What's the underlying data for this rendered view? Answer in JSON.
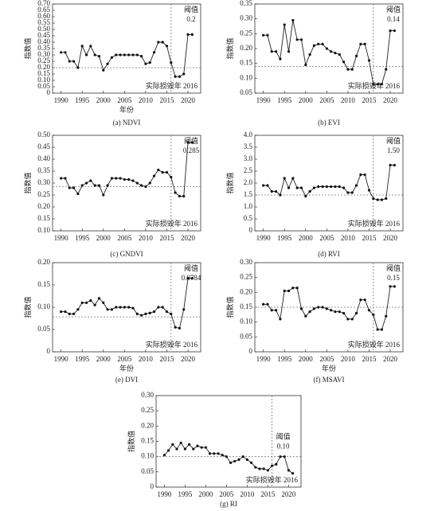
{
  "chart_data": [
    {
      "type": "line",
      "caption": "(a) NDVI",
      "ylabel": "指数值",
      "xlabel": "年份",
      "threshold_title": "阈值",
      "threshold": 0.2,
      "annotation": "实际损毁年 2016",
      "event_x": 2016,
      "x": [
        1990,
        1991,
        1992,
        1993,
        1994,
        1995,
        1996,
        1997,
        1998,
        1999,
        2000,
        2001,
        2002,
        2003,
        2004,
        2005,
        2006,
        2007,
        2008,
        2009,
        2010,
        2011,
        2012,
        2013,
        2014,
        2015,
        2016,
        2017,
        2018,
        2019,
        2020,
        2021
      ],
      "values": [
        0.32,
        0.32,
        0.25,
        0.25,
        0.2,
        0.37,
        0.3,
        0.37,
        0.3,
        0.29,
        0.18,
        0.23,
        0.28,
        0.3,
        0.3,
        0.3,
        0.3,
        0.3,
        0.3,
        0.29,
        0.23,
        0.24,
        0.32,
        0.4,
        0.4,
        0.37,
        0.24,
        0.13,
        0.13,
        0.15,
        0.46,
        0.46
      ],
      "xlim": [
        1988,
        2023
      ],
      "xticks": [
        1990,
        1995,
        2000,
        2005,
        2010,
        2015,
        2020
      ],
      "ylim": [
        0,
        0.7
      ],
      "yticks": [
        0,
        0.05,
        {
          "value": 0.1,
          "label": "0.10"
        },
        0.15,
        {
          "value": 0.2,
          "label": "0.20"
        },
        0.25,
        {
          "value": 0.3,
          "label": "0.30"
        },
        0.35,
        {
          "value": 0.4,
          "label": "0.40"
        },
        0.45,
        {
          "value": 0.5,
          "label": "0.50"
        },
        0.55,
        {
          "value": 0.6,
          "label": "0.60"
        },
        0.65,
        {
          "value": 0.7,
          "label": "0.70"
        }
      ]
    },
    {
      "type": "line",
      "caption": "(b) EVI",
      "ylabel": "指数值",
      "threshold_title": "阈值",
      "threshold": 0.14,
      "annotation": "实际损毁年 2016",
      "event_x": 2016,
      "x": [
        1990,
        1991,
        1992,
        1993,
        1994,
        1995,
        1996,
        1997,
        1998,
        1999,
        2000,
        2001,
        2002,
        2003,
        2004,
        2005,
        2006,
        2007,
        2008,
        2009,
        2010,
        2011,
        2012,
        2013,
        2014,
        2015,
        2016,
        2017,
        2018,
        2019,
        2020,
        2021
      ],
      "values": [
        0.245,
        0.245,
        0.19,
        0.19,
        0.165,
        0.28,
        0.19,
        0.295,
        0.23,
        0.23,
        0.145,
        0.18,
        0.21,
        0.215,
        0.215,
        0.2,
        0.19,
        0.185,
        0.18,
        0.155,
        0.13,
        0.13,
        0.175,
        0.215,
        0.215,
        0.16,
        0.08,
        0.08,
        0.08,
        0.13,
        0.26,
        0.26
      ],
      "xlim": [
        1988,
        2023
      ],
      "xticks": [
        1990,
        1995,
        2000,
        2005,
        2010,
        2015,
        2020
      ],
      "ylim": [
        0.05,
        0.35
      ],
      "yticks": [
        0.05,
        {
          "value": 0.1,
          "label": "0.10"
        },
        0.15,
        {
          "value": 0.2,
          "label": "0.20"
        },
        0.25,
        {
          "value": 0.3,
          "label": "0.30"
        },
        0.35
      ]
    },
    {
      "type": "line",
      "caption": "(c) GNDVI",
      "ylabel": "指数值",
      "threshold_title": "阈值",
      "threshold": 0.285,
      "annotation": "实际损毁年 2016",
      "event_x": 2016,
      "x": [
        1990,
        1991,
        1992,
        1993,
        1994,
        1995,
        1996,
        1997,
        1998,
        1999,
        2000,
        2001,
        2002,
        2003,
        2004,
        2005,
        2006,
        2007,
        2008,
        2009,
        2010,
        2011,
        2012,
        2013,
        2014,
        2015,
        2016,
        2017,
        2018,
        2019,
        2020,
        2021
      ],
      "values": [
        0.32,
        0.32,
        0.28,
        0.28,
        0.255,
        0.29,
        0.3,
        0.31,
        0.29,
        0.29,
        0.25,
        0.29,
        0.32,
        0.32,
        0.32,
        0.315,
        0.315,
        0.31,
        0.3,
        0.29,
        0.285,
        0.3,
        0.33,
        0.355,
        0.345,
        0.345,
        0.325,
        0.26,
        0.245,
        0.245,
        0.47,
        0.47
      ],
      "xlim": [
        1988,
        2023
      ],
      "xticks": [
        1990,
        1995,
        2000,
        2005,
        2010,
        2015,
        2020
      ],
      "ylim": [
        0.1,
        0.5
      ],
      "yticks": [
        {
          "value": 0.1,
          "label": "0.10"
        },
        0.15,
        {
          "value": 0.2,
          "label": "0.20"
        },
        0.25,
        {
          "value": 0.3,
          "label": "0.30"
        },
        0.35,
        {
          "value": 0.4,
          "label": "0.40"
        },
        0.45,
        {
          "value": 0.5,
          "label": "0.50"
        }
      ]
    },
    {
      "type": "line",
      "caption": "(d) RVI",
      "ylabel": "指数值",
      "threshold_title": "阈值",
      "threshold": {
        "value": 1.5,
        "label": "1.50"
      },
      "annotation": "实际损毁年 2016",
      "event_x": 2016,
      "x": [
        1990,
        1991,
        1992,
        1993,
        1994,
        1995,
        1996,
        1997,
        1998,
        1999,
        2000,
        2001,
        2002,
        2003,
        2004,
        2005,
        2006,
        2007,
        2008,
        2009,
        2010,
        2011,
        2012,
        2013,
        2014,
        2015,
        2016,
        2017,
        2018,
        2019,
        2020,
        2021
      ],
      "values": [
        1.9,
        1.9,
        1.65,
        1.65,
        1.5,
        2.2,
        1.8,
        2.2,
        1.8,
        1.8,
        1.45,
        1.65,
        1.8,
        1.85,
        1.85,
        1.85,
        1.85,
        1.85,
        1.85,
        1.8,
        1.6,
        1.6,
        1.9,
        2.35,
        2.35,
        1.7,
        1.35,
        1.3,
        1.3,
        1.35,
        2.75,
        2.75
      ],
      "xlim": [
        1988,
        2023
      ],
      "xticks": [
        1990,
        1995,
        2000,
        2005,
        2010,
        2015,
        2020
      ],
      "ylim": [
        0,
        4
      ],
      "yticks": [
        0,
        0.5,
        {
          "value": 1,
          "label": "1.0"
        },
        1.5,
        {
          "value": 2,
          "label": "2.0"
        },
        2.5,
        {
          "value": 3,
          "label": "3.0"
        },
        3.5,
        {
          "value": 4,
          "label": "4.0"
        }
      ]
    },
    {
      "type": "line",
      "caption": "(e) DVI",
      "ylabel": "指数值",
      "xlabel": "年份",
      "threshold_title": "阈值",
      "threshold": 0.0784,
      "annotation": "实际损毁年 2016",
      "event_x": 2016,
      "x": [
        1990,
        1991,
        1992,
        1993,
        1994,
        1995,
        1996,
        1997,
        1998,
        1999,
        2000,
        2001,
        2002,
        2003,
        2004,
        2005,
        2006,
        2007,
        2008,
        2009,
        2010,
        2011,
        2012,
        2013,
        2014,
        2015,
        2016,
        2017,
        2018,
        2019,
        2020,
        2021
      ],
      "values": [
        0.09,
        0.09,
        0.085,
        0.085,
        0.095,
        0.11,
        0.11,
        0.115,
        0.105,
        0.12,
        0.11,
        0.095,
        0.095,
        0.1,
        0.1,
        0.1,
        0.1,
        0.098,
        0.085,
        0.082,
        0.085,
        0.087,
        0.09,
        0.1,
        0.1,
        0.09,
        0.085,
        0.055,
        0.053,
        0.095,
        0.165,
        0.165
      ],
      "xlim": [
        1988,
        2023
      ],
      "xticks": [
        1990,
        1995,
        2000,
        2005,
        2010,
        2015,
        2020
      ],
      "ylim": [
        0,
        0.2
      ],
      "yticks": [
        0,
        0.05,
        {
          "value": 0.1,
          "label": "0.10"
        },
        0.15,
        {
          "value": 0.2,
          "label": "0.20"
        }
      ]
    },
    {
      "type": "line",
      "caption": "(f) MSAVI",
      "ylabel": "指数值",
      "xlabel": "年份",
      "threshold_title": "阈值",
      "threshold": 0.15,
      "annotation": "实际损毁年 2016",
      "event_x": 2016,
      "x": [
        1990,
        1991,
        1992,
        1993,
        1994,
        1995,
        1996,
        1997,
        1998,
        1999,
        2000,
        2001,
        2002,
        2003,
        2004,
        2005,
        2006,
        2007,
        2008,
        2009,
        2010,
        2011,
        2012,
        2013,
        2014,
        2015,
        2016,
        2017,
        2018,
        2019,
        2020,
        2021
      ],
      "values": [
        0.16,
        0.16,
        0.14,
        0.14,
        0.11,
        0.205,
        0.205,
        0.215,
        0.215,
        0.145,
        0.12,
        0.135,
        0.145,
        0.15,
        0.15,
        0.145,
        0.14,
        0.135,
        0.135,
        0.13,
        0.11,
        0.11,
        0.13,
        0.175,
        0.175,
        0.14,
        0.125,
        0.075,
        0.075,
        0.12,
        0.22,
        0.22
      ],
      "xlim": [
        1988,
        2023
      ],
      "xticks": [
        1990,
        1995,
        2000,
        2005,
        2010,
        2015,
        2020
      ],
      "ylim": [
        0,
        0.3
      ],
      "yticks": [
        0,
        0.05,
        {
          "value": 0.1,
          "label": "0.10"
        },
        0.15,
        {
          "value": 0.2,
          "label": "0.20"
        },
        0.25,
        {
          "value": 0.3,
          "label": "0.30"
        }
      ]
    },
    {
      "type": "line",
      "caption": "(g) RI",
      "ylabel": "指数值",
      "threshold_title": "阈值",
      "threshold": {
        "value": 0.1,
        "label": "0.10"
      },
      "annotation": "实际损毁年 2016",
      "event_x": 2016,
      "x": [
        1990,
        1991,
        1992,
        1993,
        1994,
        1995,
        1996,
        1997,
        1998,
        1999,
        2000,
        2001,
        2002,
        2003,
        2004,
        2005,
        2006,
        2007,
        2008,
        2009,
        2010,
        2011,
        2012,
        2013,
        2014,
        2015,
        2016,
        2017,
        2018,
        2019,
        2020,
        2021
      ],
      "values": [
        0.105,
        0.12,
        0.14,
        0.125,
        0.145,
        0.125,
        0.14,
        0.125,
        0.135,
        0.13,
        0.13,
        0.11,
        0.11,
        0.11,
        0.105,
        0.1,
        0.08,
        0.085,
        0.09,
        0.1,
        0.09,
        0.08,
        0.065,
        0.06,
        0.06,
        0.055,
        0.07,
        0.075,
        0.1,
        0.1,
        0.055,
        0.045
      ],
      "xlim": [
        1988,
        2023
      ],
      "xticks": [
        1990,
        1995,
        2000,
        2005,
        2010,
        2015,
        2020
      ],
      "ylim": [
        0,
        0.3
      ],
      "yticks": [
        0,
        0.05,
        {
          "value": 0.1,
          "label": "0.10"
        },
        0.15,
        {
          "value": 0.2,
          "label": "0.20"
        },
        0.25,
        {
          "value": 0.3,
          "label": "0.30"
        }
      ]
    }
  ]
}
